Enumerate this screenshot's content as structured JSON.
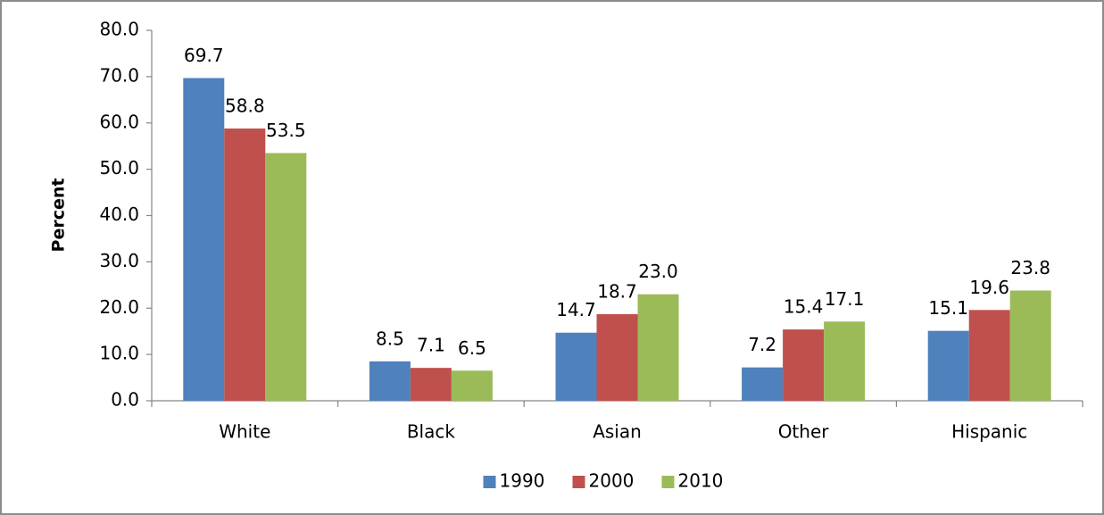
{
  "chart_data": {
    "type": "bar",
    "y_label": "Percent",
    "categories": [
      "White",
      "Black",
      "Asian",
      "Other",
      "Hispanic"
    ],
    "series": [
      {
        "name": "1990",
        "color": "#4f81bd",
        "values": [
          69.7,
          8.5,
          14.7,
          7.2,
          15.1
        ]
      },
      {
        "name": "2000",
        "color": "#c0504d",
        "values": [
          58.8,
          7.1,
          18.7,
          15.4,
          19.6
        ]
      },
      {
        "name": "2010",
        "color": "#9bbb59",
        "values": [
          53.5,
          6.5,
          23.0,
          17.1,
          23.8
        ],
        "value_labels": [
          "53.5",
          "6.5",
          "23.0",
          "17.1",
          "23.8"
        ]
      }
    ],
    "ylim": [
      0,
      80
    ],
    "yticks": [
      {
        "value": 0,
        "label": "0.0"
      },
      {
        "value": 10,
        "label": "10.0"
      },
      {
        "value": 20,
        "label": "20.0"
      },
      {
        "value": 30,
        "label": "30.0"
      },
      {
        "value": 40,
        "label": "40.0"
      },
      {
        "value": 50,
        "label": "50.0"
      },
      {
        "value": 60,
        "label": "60.0"
      },
      {
        "value": 70,
        "label": "70.0"
      },
      {
        "value": 80,
        "label": "80.0"
      }
    ],
    "grid": false,
    "legend": "bottom"
  }
}
